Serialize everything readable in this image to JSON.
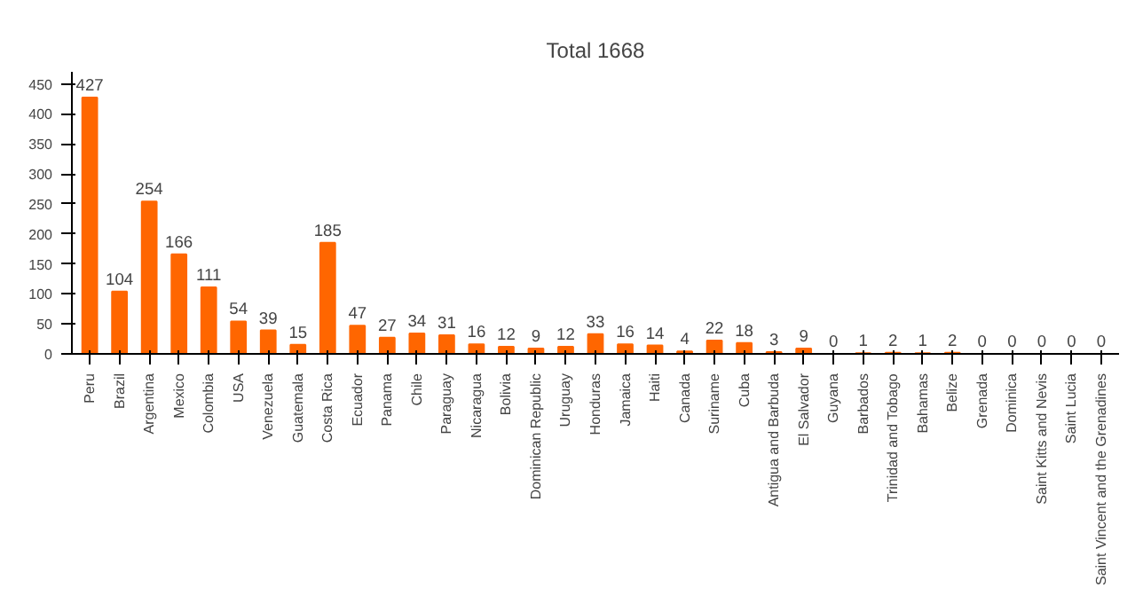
{
  "chart_data": {
    "type": "bar",
    "title": "Total 1668",
    "categories": [
      "Peru",
      "Brazil",
      "Argentina",
      "Mexico",
      "Colombia",
      "USA",
      "Venezuela",
      "Guatemala",
      "Costa Rica",
      "Ecuador",
      "Panama",
      "Chile",
      "Paraguay",
      "Nicaragua",
      "Bolivia",
      "Dominican Republic",
      "Uruguay",
      "Honduras",
      "Jamaica",
      "Haiti",
      "Canada",
      "Suriname",
      "Cuba",
      "Antigua and Barbuda",
      "El Salvador",
      "Guyana",
      "Barbados",
      "Trinidad and Tobago",
      "Bahamas",
      "Belize",
      "Grenada",
      "Dominica",
      "Saint Kitts and Nevis",
      "Saint Lucia",
      "Saint Vincent and the Grenadines"
    ],
    "values": [
      427,
      104,
      254,
      166,
      111,
      54,
      39,
      15,
      185,
      47,
      27,
      34,
      31,
      16,
      12,
      9,
      12,
      33,
      16,
      14,
      4,
      22,
      18,
      3,
      9,
      0,
      1,
      2,
      1,
      2,
      0,
      0,
      0,
      0,
      0
    ],
    "color": "#ff6600",
    "ylim": [
      0,
      470
    ],
    "yticks": [
      0,
      50,
      100,
      150,
      200,
      250,
      300,
      350,
      400,
      450
    ],
    "grid": false,
    "data_labels": true
  }
}
